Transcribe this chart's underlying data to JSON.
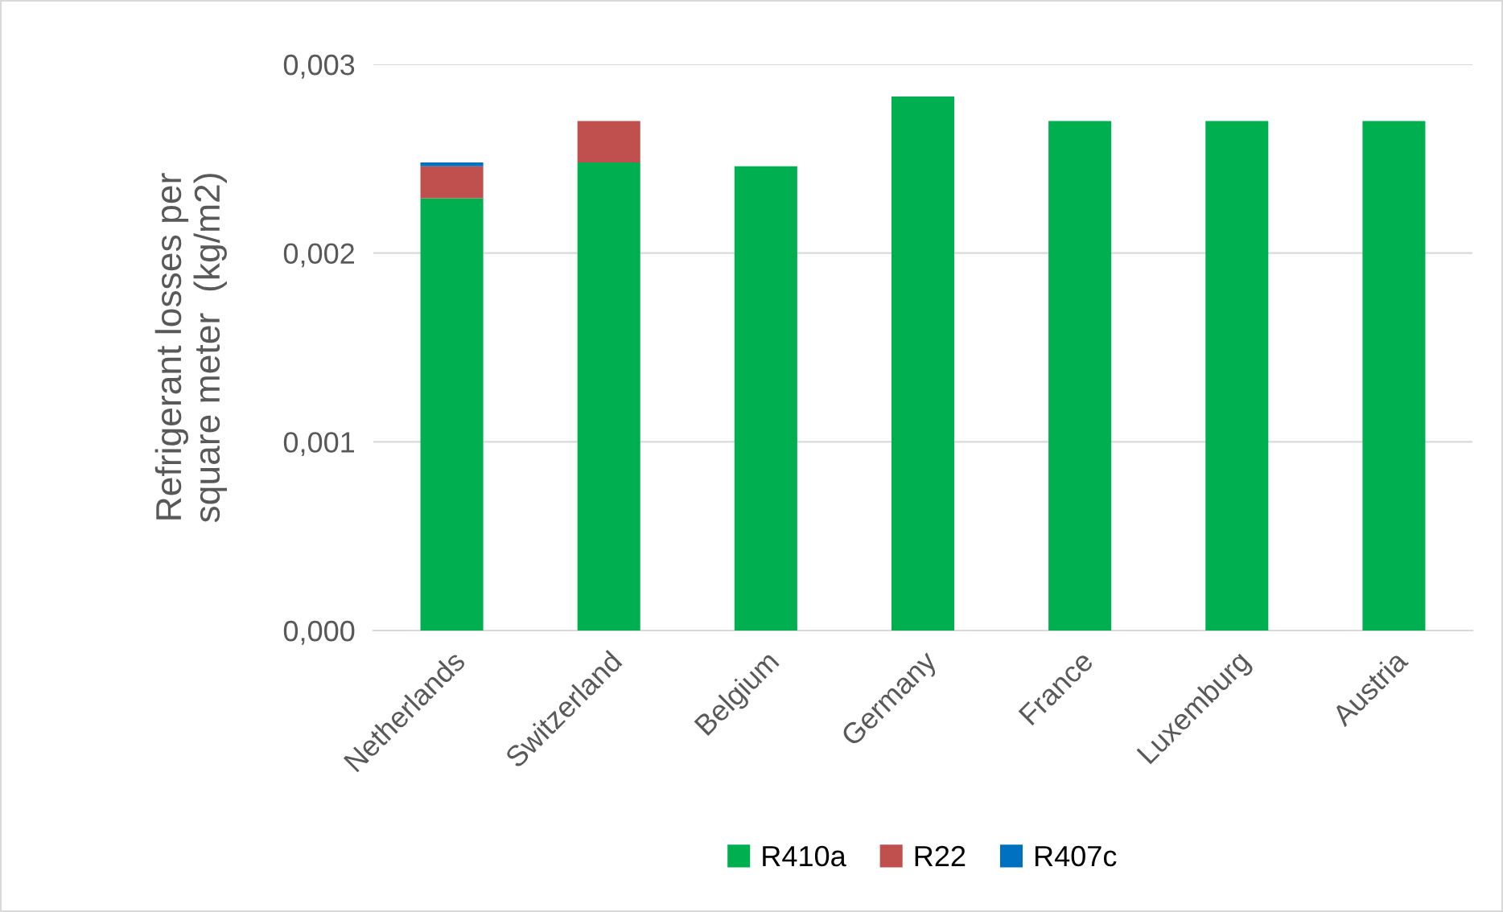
{
  "chart_data": {
    "type": "bar",
    "stacked": true,
    "ylabel": "Refrigerant losses per\nsquare meter  (kg/m2)",
    "categories": [
      "Netherlands",
      "Switzerland",
      "Belgium",
      "Germany",
      "France",
      "Luxemburg",
      "Austria"
    ],
    "series": [
      {
        "name": "R410a",
        "color": "#00b050",
        "values": [
          0.00229,
          0.00248,
          0.00246,
          0.00283,
          0.0027,
          0.0027,
          0.0027
        ]
      },
      {
        "name": "R22",
        "color": "#c0504d",
        "values": [
          0.00017,
          0.00022,
          0,
          0,
          0,
          0,
          0
        ]
      },
      {
        "name": "R407c",
        "color": "#0070c0",
        "values": [
          2e-05,
          0,
          0,
          0,
          0,
          0,
          0
        ]
      }
    ],
    "ylim": [
      0,
      0.003
    ],
    "yticks": [
      {
        "value": 0,
        "label": "0,000"
      },
      {
        "value": 0.001,
        "label": "0,001"
      },
      {
        "value": 0.002,
        "label": "0,002"
      },
      {
        "value": 0.003,
        "label": "0,003"
      }
    ],
    "grid": "y",
    "legend": "bottom"
  }
}
